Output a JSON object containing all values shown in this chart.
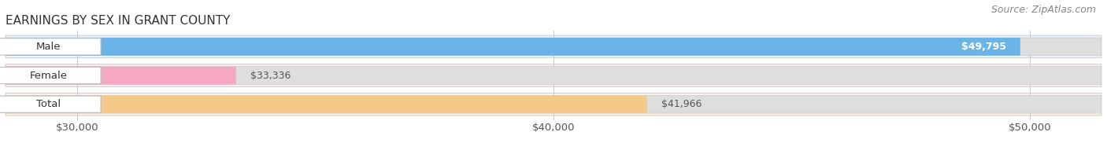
{
  "title": "EARNINGS BY SEX IN GRANT COUNTY",
  "source": "Source: ZipAtlas.com",
  "categories": [
    "Male",
    "Female",
    "Total"
  ],
  "values": [
    49795,
    33336,
    41966
  ],
  "bar_colors": [
    "#6ab4e8",
    "#f4a8c4",
    "#f5c98a"
  ],
  "bar_bg_color": "#e2e2e2",
  "row_bg_colors": [
    "#eef5fb",
    "#fceef4",
    "#fdf5e6"
  ],
  "xmin": 28500,
  "xmax": 51500,
  "xticks": [
    30000,
    40000,
    50000
  ],
  "xtick_labels": [
    "$30,000",
    "$40,000",
    "$50,000"
  ],
  "title_fontsize": 11,
  "label_fontsize": 9.5,
  "value_fontsize": 9,
  "source_fontsize": 9,
  "background_color": "#ffffff"
}
